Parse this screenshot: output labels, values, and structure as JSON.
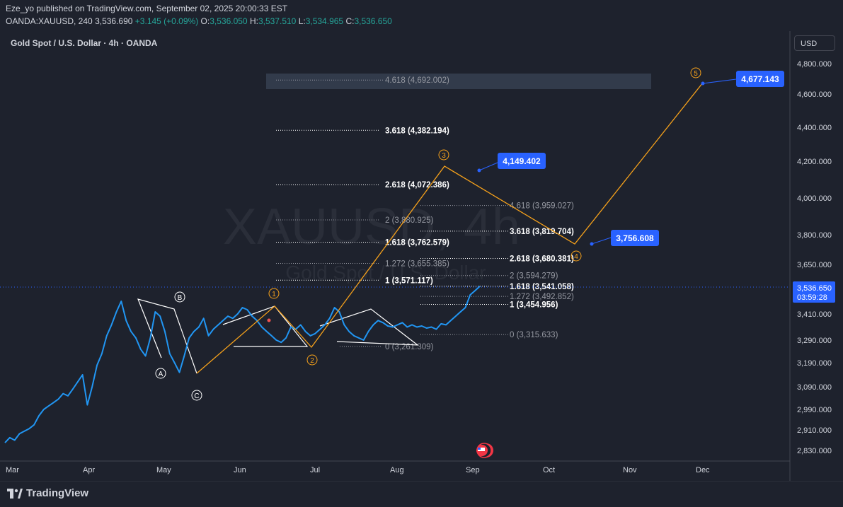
{
  "header": {
    "author": "Eze_yo",
    "published_text": "published on TradingView.com, September 02, 2025 20:00:33 EST",
    "symbol": "OANDA:XAUUSD, 240",
    "price": "3,536.690",
    "change": "+3.145 (+0.09%)",
    "o_label": "O:",
    "o_value": "3,536.050",
    "h_label": "H:",
    "h_value": "3,537.510",
    "l_label": "L:",
    "l_value": "3,534.965",
    "c_label": "C:",
    "c_value": "3,536.650"
  },
  "chart_title": "Gold Spot / U.S. Dollar · 4h · OANDA",
  "currency_button": "USD",
  "watermark": {
    "symbol": "XAUUSD, 4h",
    "name": "Gold Spot / U.S. Dollar"
  },
  "colors": {
    "background": "#1e222d",
    "price_line": "#2196f3",
    "wave": "#f7a21b",
    "fib_bright": "#ffffff",
    "fib_dim": "#9598a1",
    "target_label": "#2962ff",
    "current_price_badge": "#2962ff"
  },
  "chart_data": {
    "type": "line",
    "title": "Gold Spot / U.S. Dollar · 4h · OANDA",
    "x_labels": [
      "Mar",
      "Apr",
      "May",
      "Jun",
      "Jul",
      "Aug",
      "Sep",
      "Oct",
      "Nov",
      "Dec"
    ],
    "y_ticks": [
      "4,800.000",
      "4,600.000",
      "4,400.000",
      "4,200.000",
      "4,000.000",
      "3,800.000",
      "3,650.000",
      "3,410.000",
      "3,290.000",
      "3,190.000",
      "3,090.000",
      "2,990.000",
      "2,910.000",
      "2,830.000"
    ],
    "current_price": {
      "value": "3,536.650",
      "countdown": "03:59:28"
    },
    "series": [
      {
        "values": [
          2860,
          2880,
          2870,
          2895,
          2905,
          2915,
          2930,
          2965,
          2990,
          3005,
          3020,
          3035,
          3060,
          3050,
          3080,
          3110,
          3140,
          3010,
          3090,
          3180,
          3230,
          3310,
          3360,
          3420,
          3470,
          3380,
          3330,
          3300,
          3250,
          3220,
          3300,
          3420,
          3400,
          3330,
          3230,
          3190,
          3150,
          3220,
          3300,
          3330,
          3350,
          3390,
          3310,
          3340,
          3360,
          3380,
          3400,
          3390,
          3410,
          3440,
          3430,
          3400,
          3380,
          3350,
          3330,
          3310,
          3290,
          3280,
          3300,
          3350,
          3340,
          3360,
          3330,
          3310,
          3320,
          3340,
          3360,
          3390,
          3440,
          3420,
          3360,
          3330,
          3310,
          3300,
          3290,
          3330,
          3360,
          3380,
          3370,
          3355,
          3350,
          3360,
          3370,
          3350,
          3360,
          3350,
          3355,
          3345,
          3350,
          3340,
          3365,
          3360,
          3380,
          3400,
          3420,
          3440,
          3500,
          3520,
          3541
        ]
      }
    ],
    "waves": [
      {
        "label": "1",
        "value": 3452
      },
      {
        "label": "2",
        "value": 3268
      },
      {
        "label": "3",
        "value": 4170
      },
      {
        "label": "4",
        "value": 3745
      },
      {
        "label": "5",
        "value": 4678
      }
    ],
    "corrective_labels": [
      "A",
      "B",
      "C"
    ],
    "fib_levels": [
      {
        "label": "4.618 (4,692.002)",
        "value": 4692.002
      },
      {
        "label": "3.618 (4,382.194)",
        "value": 4382.194
      },
      {
        "label": "2.618 (4,072.386)",
        "value": 4072.386
      },
      {
        "label": "4.618 (3,959.027)",
        "value": 3959.027
      },
      {
        "label": "2 (3,880.925)",
        "value": 3880.925
      },
      {
        "label": "3.618 (3,819.704)",
        "value": 3819.704
      },
      {
        "label": "1.618 (3,762.579)",
        "value": 3762.579
      },
      {
        "label": "2.618 (3,680.381)",
        "value": 3680.381
      },
      {
        "label": "1.272 (3,655.385)",
        "value": 3655.385
      },
      {
        "label": "2 (3,594.279)",
        "value": 3594.279
      },
      {
        "label": "1 (3,571.117)",
        "value": 3571.117
      },
      {
        "label": "1.618 (3,541.058)",
        "value": 3541.058
      },
      {
        "label": "1.272 (3,492.852)",
        "value": 3492.852
      },
      {
        "label": "1 (3,454.956)",
        "value": 3454.956
      },
      {
        "label": "0 (3,315.633)",
        "value": 3315.633
      },
      {
        "label": "0 (3,261.309)",
        "value": 3261.309
      }
    ],
    "targets": [
      {
        "label": "4,149.402",
        "value": 4149.402
      },
      {
        "label": "3,756.608",
        "value": 3756.608
      },
      {
        "label": "4,677.143",
        "value": 4677.143
      }
    ]
  },
  "footer": {
    "brand": "TradingView"
  }
}
